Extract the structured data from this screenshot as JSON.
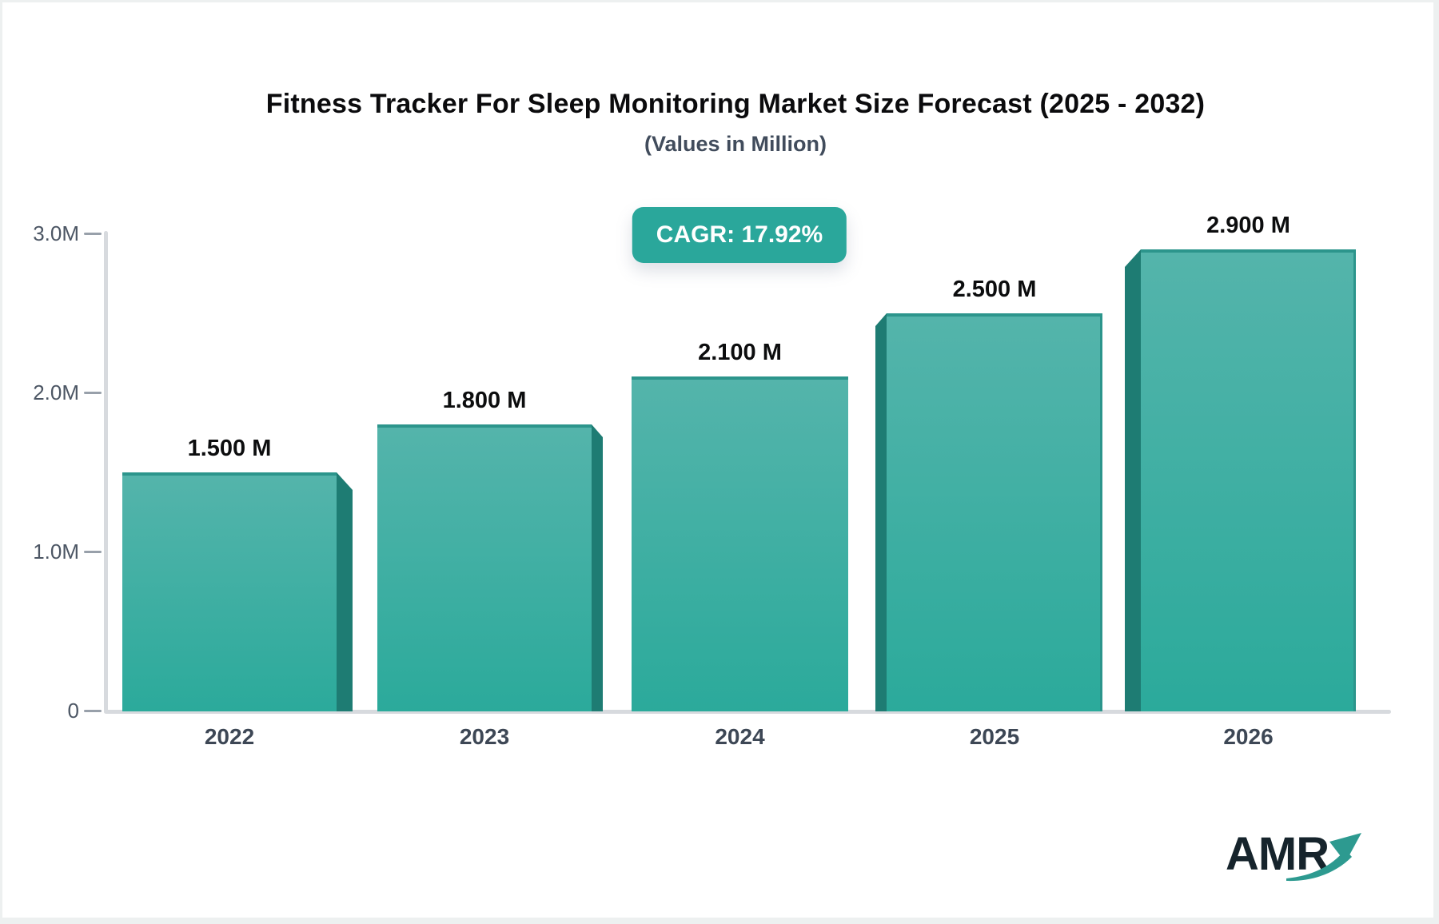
{
  "page": {
    "background": "#ffffff",
    "frame_border_color": "#edf0f0"
  },
  "header": {
    "title": "Fitness Tracker For Sleep Monitoring Market Size Forecast (2025 - 2032)",
    "subtitle": "(Values in Million)"
  },
  "badge": {
    "label": "CAGR: 17.92%",
    "background": "#2aa79b",
    "text_color": "#ffffff"
  },
  "chart_data": {
    "type": "bar",
    "title": "Fitness Tracker For Sleep Monitoring Market Size Forecast (2025 - 2032)",
    "subtitle": "(Values in Million)",
    "unit": "Million",
    "cagr": "17.92%",
    "categories": [
      "2022",
      "2023",
      "2024",
      "2025",
      "2026"
    ],
    "values": [
      1.5,
      1.8,
      2.1,
      2.5,
      2.9
    ],
    "value_labels": [
      "1.500 M",
      "1.800 M",
      "2.100 M",
      "2.500 M",
      "2.900 M"
    ],
    "xlabel": "",
    "ylabel": "",
    "ylim": [
      0,
      3.0
    ],
    "yticks": [
      {
        "value": 0,
        "label": "0"
      },
      {
        "value": 1.0,
        "label": "1.0M"
      },
      {
        "value": 2.0,
        "label": "2.0M"
      },
      {
        "value": 3.0,
        "label": "3.0M"
      }
    ],
    "grid": false,
    "legend": false,
    "colors": {
      "bar_top": "#54b4ab",
      "bar_bottom": "#2baa9b",
      "bar_top_edge": "#2c958c",
      "bar_side_3d": "#1e7c73",
      "axis": "#d7dade",
      "tick": "#98a0aa",
      "y_label": "#4c5664",
      "x_label": "#3d4755",
      "value_label": "#0c0d0e"
    }
  },
  "logo": {
    "text": "AMR",
    "text_color": "#16242c",
    "arrow_color": "#2d9a90",
    "arrow_icon": "growth-arrow"
  }
}
